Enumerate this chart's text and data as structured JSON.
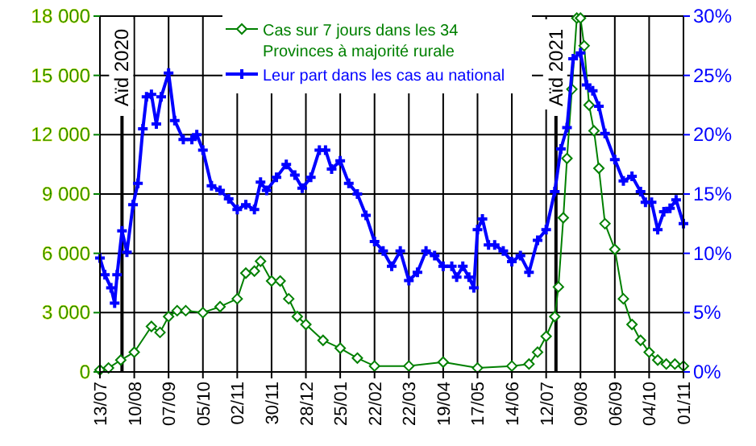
{
  "chart_data": {
    "type": "line",
    "xlim": [
      "2020-07-13",
      "2021-11-01"
    ],
    "xticks": [
      {
        "value": "2020-07-13",
        "label": "13/07"
      },
      {
        "value": "2020-08-10",
        "label": "10/08"
      },
      {
        "value": "2020-09-07",
        "label": "07/09"
      },
      {
        "value": "2020-10-05",
        "label": "05/10"
      },
      {
        "value": "2020-11-02",
        "label": "02/11"
      },
      {
        "value": "2020-11-30",
        "label": "30/11"
      },
      {
        "value": "2020-12-28",
        "label": "28/12"
      },
      {
        "value": "2021-01-25",
        "label": "25/01"
      },
      {
        "value": "2021-02-22",
        "label": "22/02"
      },
      {
        "value": "2021-03-22",
        "label": "22/03"
      },
      {
        "value": "2021-04-19",
        "label": "19/04"
      },
      {
        "value": "2021-05-17",
        "label": "17/05"
      },
      {
        "value": "2021-06-14",
        "label": "14/06"
      },
      {
        "value": "2021-07-12",
        "label": "12/07"
      },
      {
        "value": "2021-08-09",
        "label": "09/08"
      },
      {
        "value": "2021-09-06",
        "label": "06/09"
      },
      {
        "value": "2021-10-04",
        "label": "04/10"
      },
      {
        "value": "2021-11-01",
        "label": "01/11"
      }
    ],
    "ylim": [
      0,
      18000
    ],
    "yticks": [
      {
        "value": 0,
        "label": "0"
      },
      {
        "value": 3000,
        "label": "3 000"
      },
      {
        "value": 6000,
        "label": "6 000"
      },
      {
        "value": 9000,
        "label": "9 000"
      },
      {
        "value": 12000,
        "label": "12 000"
      },
      {
        "value": 15000,
        "label": "15 000"
      },
      {
        "value": 18000,
        "label": "18 000"
      }
    ],
    "y2lim": [
      0,
      30
    ],
    "y2ticks": [
      {
        "value": 0,
        "label": "0%"
      },
      {
        "value": 5,
        "label": "5%"
      },
      {
        "value": 10,
        "label": "10%"
      },
      {
        "value": 15,
        "label": "15%"
      },
      {
        "value": 20,
        "label": "20%"
      },
      {
        "value": 25,
        "label": "25%"
      },
      {
        "value": 30,
        "label": "30%"
      }
    ],
    "grid": true,
    "legend": "top",
    "line_style": "solid",
    "ref_lines": [
      {
        "axis": "x",
        "value": "2020-07-31",
        "label": "Aïd 2020",
        "color": "#000000"
      },
      {
        "axis": "x",
        "value": "2021-07-20",
        "label": "Aïd 2021",
        "color": "#000000"
      }
    ],
    "series": [
      {
        "name": "Cas sur 7 jours dans les 34\nProvinces à majorité rurale",
        "color": "#008000",
        "marker": "diamond",
        "x": [
          "2020-07-13",
          "2020-07-20",
          "2020-07-30",
          "2020-08-10",
          "2020-08-24",
          "2020-08-31",
          "2020-09-07",
          "2020-09-14",
          "2020-09-21",
          "2020-10-05",
          "2020-10-19",
          "2020-11-02",
          "2020-11-09",
          "2020-11-16",
          "2020-11-21",
          "2020-11-30",
          "2020-12-07",
          "2020-12-14",
          "2020-12-21",
          "2020-12-28",
          "2021-01-11",
          "2021-01-25",
          "2021-02-08",
          "2021-02-22",
          "2021-03-22",
          "2021-04-19",
          "2021-05-17",
          "2021-06-14",
          "2021-06-28",
          "2021-07-05",
          "2021-07-12",
          "2021-07-19",
          "2021-07-22",
          "2021-07-26",
          "2021-07-29",
          "2021-08-02",
          "2021-08-06",
          "2021-08-09",
          "2021-08-12",
          "2021-08-16",
          "2021-08-20",
          "2021-08-24",
          "2021-08-29",
          "2021-09-06",
          "2021-09-13",
          "2021-09-20",
          "2021-09-27",
          "2021-10-04",
          "2021-10-11",
          "2021-10-18",
          "2021-10-25",
          "2021-11-01"
        ],
        "values": [
          100,
          200,
          600,
          1000,
          2300,
          2000,
          2800,
          3100,
          3100,
          3000,
          3300,
          3700,
          5000,
          5100,
          5600,
          4600,
          4600,
          3700,
          2800,
          2400,
          1600,
          1200,
          700,
          300,
          300,
          500,
          200,
          300,
          400,
          1000,
          1800,
          2800,
          4300,
          7800,
          10800,
          14300,
          17900,
          17900,
          16500,
          13500,
          12200,
          10300,
          7500,
          6200,
          3700,
          2400,
          1600,
          1000,
          600,
          400,
          400,
          300
        ]
      },
      {
        "name": "Leur part dans les cas au national",
        "color": "#0000ff",
        "marker": "cross",
        "axis": "y2",
        "x": [
          "2020-07-13",
          "2020-07-17",
          "2020-07-22",
          "2020-07-25",
          "2020-07-27",
          "2020-07-31",
          "2020-08-04",
          "2020-08-09",
          "2020-08-13",
          "2020-08-17",
          "2020-08-20",
          "2020-08-24",
          "2020-08-28",
          "2020-09-01",
          "2020-09-07",
          "2020-09-12",
          "2020-09-19",
          "2020-09-26",
          "2020-09-30",
          "2020-10-05",
          "2020-10-12",
          "2020-10-19",
          "2020-10-26",
          "2020-11-02",
          "2020-11-09",
          "2020-11-16",
          "2020-11-21",
          "2020-11-26",
          "2020-12-04",
          "2020-12-12",
          "2020-12-19",
          "2020-12-25",
          "2021-01-01",
          "2021-01-08",
          "2021-01-13",
          "2021-01-18",
          "2021-01-25",
          "2021-02-01",
          "2021-02-08",
          "2021-02-15",
          "2021-02-22",
          "2021-03-01",
          "2021-03-08",
          "2021-03-15",
          "2021-03-22",
          "2021-03-29",
          "2021-04-05",
          "2021-04-12",
          "2021-04-19",
          "2021-04-26",
          "2021-04-30",
          "2021-05-05",
          "2021-05-10",
          "2021-05-14",
          "2021-05-17",
          "2021-05-21",
          "2021-05-26",
          "2021-05-31",
          "2021-06-07",
          "2021-06-14",
          "2021-06-21",
          "2021-06-28",
          "2021-07-05",
          "2021-07-12",
          "2021-07-19",
          "2021-07-24",
          "2021-07-29",
          "2021-08-03",
          "2021-08-09",
          "2021-08-14",
          "2021-08-19",
          "2021-08-24",
          "2021-08-29",
          "2021-09-06",
          "2021-09-13",
          "2021-09-20",
          "2021-09-27",
          "2021-10-01",
          "2021-10-06",
          "2021-10-11",
          "2021-10-16",
          "2021-10-21",
          "2021-10-26",
          "2021-11-01"
        ],
        "values": [
          9.6,
          8.2,
          7.1,
          5.8,
          8.2,
          11.9,
          10.1,
          14.1,
          15.9,
          20.5,
          23.2,
          23.4,
          20.9,
          23.2,
          25.2,
          21.2,
          19.6,
          19.6,
          20.0,
          18.7,
          15.7,
          15.3,
          14.6,
          13.7,
          14.1,
          13.7,
          16.0,
          15.3,
          16.4,
          17.5,
          16.6,
          15.5,
          16.4,
          18.7,
          18.7,
          17.1,
          17.8,
          15.9,
          15.0,
          13.2,
          11.0,
          10.2,
          8.9,
          10.2,
          7.7,
          8.4,
          10.2,
          9.8,
          8.9,
          8.9,
          8.0,
          8.9,
          8.0,
          7.1,
          12.0,
          12.9,
          10.7,
          10.7,
          10.2,
          9.3,
          9.8,
          8.4,
          11.1,
          12.0,
          15.2,
          18.8,
          20.6,
          26.4,
          26.9,
          24.2,
          23.7,
          22.4,
          20.1,
          17.9,
          16.1,
          16.5,
          15.2,
          14.3,
          14.3,
          12.0,
          13.5,
          13.8,
          14.5,
          12.5
        ]
      }
    ]
  }
}
